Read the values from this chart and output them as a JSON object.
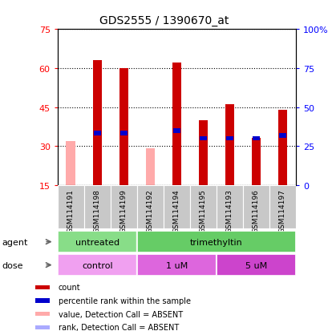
{
  "title": "GDS2555 / 1390670_at",
  "samples": [
    "GSM114191",
    "GSM114198",
    "GSM114199",
    "GSM114192",
    "GSM114194",
    "GSM114195",
    "GSM114193",
    "GSM114196",
    "GSM114197"
  ],
  "count_values": [
    null,
    63,
    60,
    null,
    62,
    40,
    46,
    33,
    44
  ],
  "absent_count_values": [
    32,
    null,
    null,
    29,
    null,
    null,
    null,
    null,
    null
  ],
  "rank_values": [
    null,
    35,
    35,
    null,
    36,
    33,
    33,
    33,
    34
  ],
  "ylim_left": [
    15,
    75
  ],
  "ylim_right": [
    0,
    100
  ],
  "left_yticks": [
    15,
    30,
    45,
    60,
    75
  ],
  "right_yticks": [
    0,
    25,
    50,
    75,
    100
  ],
  "right_yticklabels": [
    "0",
    "25",
    "50",
    "75",
    "100%"
  ],
  "agent_groups": [
    {
      "label": "untreated",
      "start": 0,
      "end": 3,
      "color": "#88dd88"
    },
    {
      "label": "trimethyltin",
      "start": 3,
      "end": 9,
      "color": "#66cc66"
    }
  ],
  "dose_colors": [
    "#f0a0f0",
    "#dd66dd",
    "#cc44cc"
  ],
  "dose_groups": [
    {
      "label": "control",
      "start": 0,
      "end": 3
    },
    {
      "label": "1 uM",
      "start": 3,
      "end": 6
    },
    {
      "label": "5 uM",
      "start": 6,
      "end": 9
    }
  ],
  "count_color": "#cc0000",
  "absent_count_color": "#ffaaaa",
  "rank_color": "#0000cc",
  "absent_rank_color": "#aaaaff",
  "sample_bg_color": "#c8c8c8",
  "background_color": "#ffffff",
  "legend_items": [
    {
      "label": "count",
      "color": "#cc0000"
    },
    {
      "label": "percentile rank within the sample",
      "color": "#0000cc"
    },
    {
      "label": "value, Detection Call = ABSENT",
      "color": "#ffaaaa"
    },
    {
      "label": "rank, Detection Call = ABSENT",
      "color": "#aaaaff"
    }
  ]
}
